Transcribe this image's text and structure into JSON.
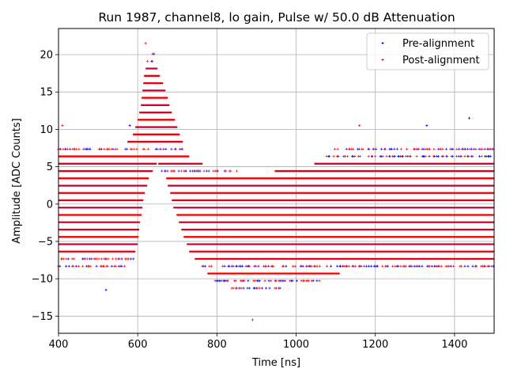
{
  "chart_data": {
    "type": "scatter",
    "title": "Run 1987, channel8, lo gain, Pulse w/ 50.0 dB Attenuation",
    "xlabel": "Time [ns]",
    "ylabel": "Amplitude [ADC Counts]",
    "xlim": [
      400,
      1500
    ],
    "ylim": [
      -17.3,
      23.5
    ],
    "grid": true,
    "legend_position": "top-right",
    "xticks": [
      400,
      600,
      800,
      1000,
      1200,
      1400
    ],
    "yticks": [
      -15,
      -10,
      -5,
      0,
      5,
      10,
      15,
      20
    ],
    "quantization_step": 0.98,
    "series": [
      {
        "name": "Pre-alignment",
        "color": "#0000ff",
        "marker": "plus"
      },
      {
        "name": "Post-alignment",
        "color": "#ff0000",
        "marker": "plus"
      }
    ],
    "upper_envelope": {
      "x": [
        400,
        500,
        560,
        590,
        605,
        615,
        625,
        640,
        655,
        670,
        685,
        700,
        720,
        740,
        760,
        800,
        850,
        900,
        950,
        1000,
        1050,
        1080,
        1100,
        1150,
        1200,
        1300,
        1400,
        1500
      ],
      "y": [
        7.5,
        7.5,
        7.5,
        9.5,
        12.5,
        17.5,
        19.5,
        20.5,
        17.5,
        15.5,
        12.5,
        10.5,
        7.5,
        5.5,
        5.5,
        4.5,
        4.5,
        3.5,
        4.5,
        4.5,
        5.5,
        6.5,
        7.5,
        7.5,
        7.5,
        7.5,
        7.5,
        7.5
      ]
    },
    "lower_envelope": {
      "x": [
        400,
        560,
        585,
        600,
        615,
        630,
        650,
        670,
        690,
        710,
        730,
        760,
        800,
        850,
        900,
        950,
        1000,
        1050,
        1100,
        1150,
        1200,
        1300,
        1400,
        1500
      ],
      "y": [
        -8.5,
        -8.5,
        -8.5,
        -5.5,
        0.5,
        3.5,
        5.5,
        3.5,
        -0.5,
        -3.5,
        -6.5,
        -8.5,
        -10.5,
        -11.5,
        -11.5,
        -11.5,
        -10.5,
        -10.5,
        -9.5,
        -8.5,
        -8.5,
        -8.5,
        -8.5,
        -8.5
      ]
    },
    "outliers": [
      {
        "x": 520,
        "y": -11.5
      },
      {
        "x": 890,
        "y": -15.5
      },
      {
        "x": 1437,
        "y": 11.5
      },
      {
        "x": 1160,
        "y": 10.5
      },
      {
        "x": 1330,
        "y": 10.5
      },
      {
        "x": 620,
        "y": 21.5
      },
      {
        "x": 580,
        "y": 10.5
      },
      {
        "x": 410,
        "y": 10.5
      }
    ]
  }
}
